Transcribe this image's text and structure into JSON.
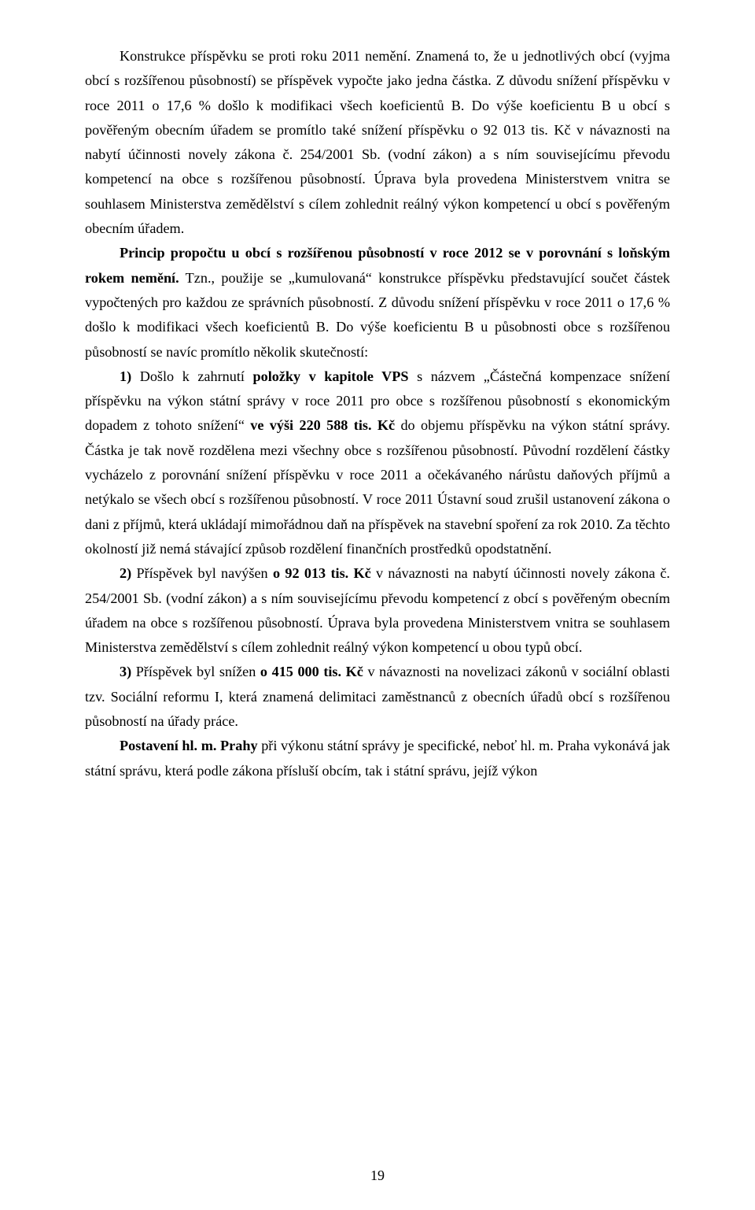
{
  "paragraphs": {
    "p1": [
      {
        "text": "Konstrukce příspěvku se proti roku 2011 nemění. Znamená to, že u jednotlivých obcí (vyjma obcí s rozšířenou působností) se příspěvek vypočte jako jedna částka. Z důvodu snížení příspěvku v roce 2011 o 17,6 % došlo k modifikaci všech koeficientů B. Do výše koeficientu B u obcí s pověřeným obecním úřadem se promítlo také snížení příspěvku o 92 013 tis. Kč v návaznosti na nabytí účinnosti novely zákona č. 254/2001 Sb. (vodní zákon) a s ním souvisejícímu převodu kompetencí na obce s rozšířenou působností. Úprava byla provedena Ministerstvem vnitra se souhlasem Ministerstva zemědělství s cílem zohlednit reálný výkon kompetencí u obcí s pověřeným obecním úřadem.",
        "bold": false
      }
    ],
    "p2": [
      {
        "text": "Princip propočtu u obcí s rozšířenou působností v roce 2012 se v porovnání s loňským rokem nemění.",
        "bold": true
      },
      {
        "text": " Tzn., použije se „kumulovaná“ konstrukce příspěvku představující součet částek vypočtených pro každou ze správních působností. Z důvodu snížení příspěvku v roce 2011 o 17,6 % došlo k modifikaci všech koeficientů B. Do výše koeficientu B u působnosti obce s rozšířenou působností se navíc promítlo několik skutečností:",
        "bold": false
      }
    ],
    "p3": [
      {
        "text": "1)",
        "bold": true
      },
      {
        "text": " Došlo k zahrnutí ",
        "bold": false
      },
      {
        "text": "položky v kapitole VPS",
        "bold": true
      },
      {
        "text": " s názvem „Částečná kompenzace snížení příspěvku na výkon státní správy v roce 2011 pro obce s rozšířenou působností s ekonomickým dopadem z tohoto snížení“ ",
        "bold": false
      },
      {
        "text": "ve výši 220 588 tis. Kč",
        "bold": true
      },
      {
        "text": " do objemu příspěvku na výkon státní správy. Částka je tak nově rozdělena mezi všechny obce s rozšířenou působností. Původní rozdělení částky vycházelo z porovnání snížení příspěvku v roce 2011 a očekávaného nárůstu daňových příjmů a netýkalo se všech obcí s rozšířenou působností. V roce 2011 Ústavní soud zrušil ustanovení zákona o dani z příjmů, která ukládají mimořádnou daň na příspěvek na stavební spoření za rok 2010. Za těchto okolností již nemá stávající způsob rozdělení finančních prostředků opodstatnění.",
        "bold": false
      }
    ],
    "p4": [
      {
        "text": "2)",
        "bold": true
      },
      {
        "text": " Příspěvek byl navýšen ",
        "bold": false
      },
      {
        "text": "o 92 013 tis. Kč",
        "bold": true
      },
      {
        "text": " v návaznosti na nabytí účinnosti novely zákona č. 254/2001 Sb. (vodní zákon) a s ním souvisejícímu převodu kompetencí z obcí s pověřeným obecním úřadem na obce s rozšířenou působností. Úprava byla provedena Ministerstvem vnitra se souhlasem Ministerstva zemědělství s cílem zohlednit reálný výkon kompetencí u obou typů obcí.",
        "bold": false
      }
    ],
    "p5": [
      {
        "text": "3)",
        "bold": true
      },
      {
        "text": " Příspěvek byl snížen ",
        "bold": false
      },
      {
        "text": "o 415 000 tis. Kč",
        "bold": true
      },
      {
        "text": " v návaznosti na novelizaci zákonů v sociální oblasti tzv. Sociální reformu I, která znamená delimitaci zaměstnanců z obecních úřadů obcí s rozšířenou působností na úřady práce.",
        "bold": false
      }
    ],
    "p6": [
      {
        "text": "Postavení hl. m. Prahy",
        "bold": true
      },
      {
        "text": " při výkonu státní správy je specifické, neboť hl. m. Praha vykonává jak státní správu, která podle zákona přísluší obcím, tak i státní správu, jejíž výkon",
        "bold": false
      }
    ]
  },
  "page_number": "19"
}
